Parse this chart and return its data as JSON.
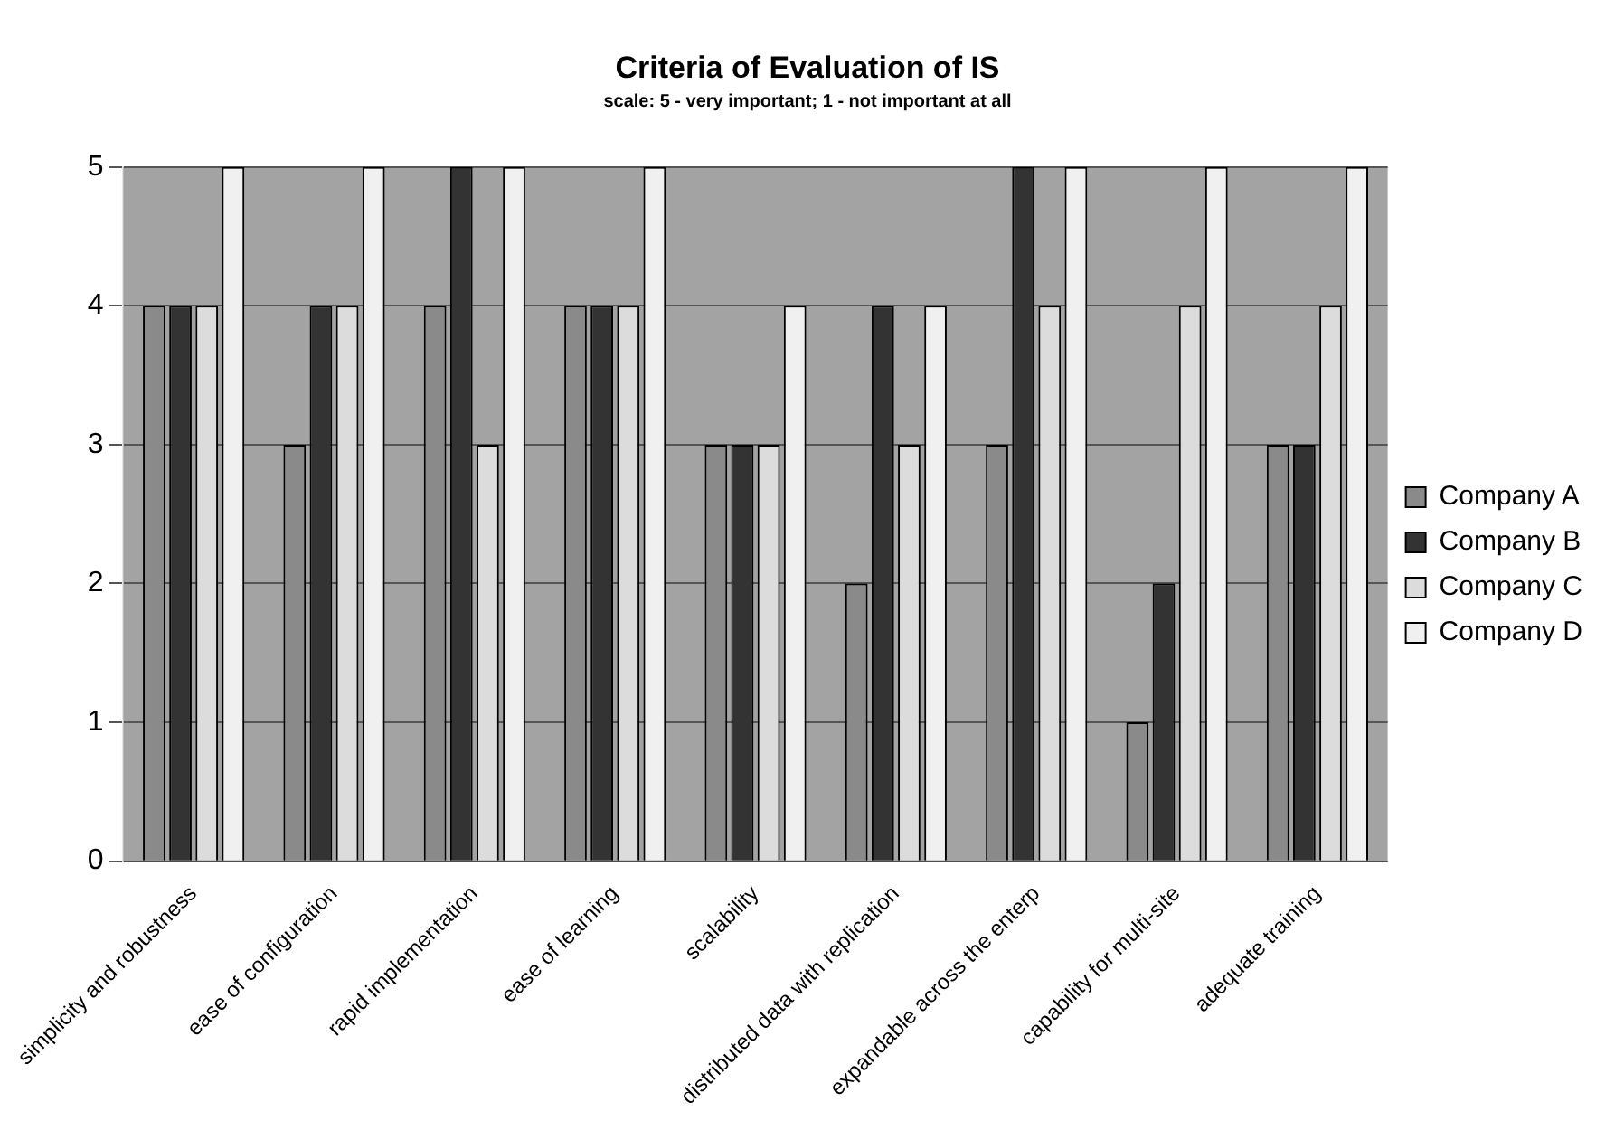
{
  "chart_data": {
    "type": "bar",
    "title": "Criteria of Evaluation of IS",
    "subtitle": "scale: 5 - very important; 1 - not important at all",
    "categories": [
      "simplicity and robustness",
      "ease of configuration",
      "rapid implementation",
      "ease of learning",
      "scalability",
      "distributed data with replication",
      "expandable across the enterp",
      "capability for multi-site",
      "adequate training"
    ],
    "series": [
      {
        "name": "Company A",
        "color": "#8a8a8a",
        "values": [
          4,
          3,
          4,
          4,
          3,
          2,
          3,
          1,
          3
        ]
      },
      {
        "name": "Company B",
        "color": "#333333",
        "values": [
          4,
          4,
          5,
          4,
          3,
          4,
          5,
          2,
          3
        ]
      },
      {
        "name": "Company C",
        "color": "#dcdcdc",
        "values": [
          4,
          4,
          3,
          4,
          3,
          3,
          4,
          4,
          4
        ]
      },
      {
        "name": "Company D",
        "color": "#f0f0f0",
        "values": [
          5,
          5,
          5,
          5,
          4,
          4,
          5,
          5,
          5
        ]
      }
    ],
    "ylim": [
      0,
      5
    ],
    "yticks": [
      0,
      1,
      2,
      3,
      4,
      5
    ],
    "grid": "y",
    "legend": "right"
  }
}
